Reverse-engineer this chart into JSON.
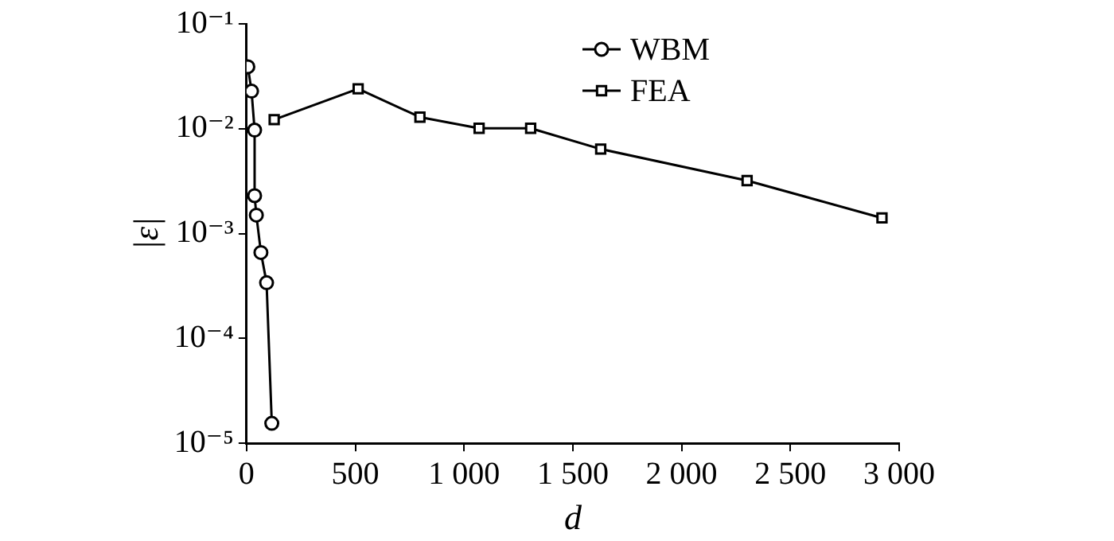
{
  "chart_data": {
    "type": "line",
    "xlabel": "d",
    "ylabel": "|ε|",
    "log": "y",
    "legend": "top right",
    "grid": false,
    "line_style": "solid",
    "xlim": [
      0,
      3000
    ],
    "xticks": [
      0,
      500,
      {
        "value": 1000,
        "label": "1 000"
      },
      {
        "value": 1500,
        "label": "1 500"
      },
      {
        "value": 2000,
        "label": "2 000"
      },
      {
        "value": 2500,
        "label": "2 500"
      },
      {
        "value": 3000,
        "label": "3 000"
      }
    ],
    "ylim": [
      1e-05,
      0.1
    ],
    "yticks": [
      {
        "value": 1e-05,
        "label": "10⁻⁵"
      },
      {
        "value": 0.0001,
        "label": "10⁻⁴"
      },
      {
        "value": 0.001,
        "label": "10⁻³"
      },
      {
        "value": 0.01,
        "label": "10⁻²"
      },
      {
        "value": 0.1,
        "label": "10⁻¹"
      }
    ],
    "series": [
      {
        "name": "WBM",
        "color": "#000000",
        "marker": "circle",
        "x": [
          6,
          23,
          37,
          37,
          45,
          66,
          92,
          116
        ],
        "values": [
          0.039,
          0.0228,
          0.0097,
          0.0023,
          0.0015,
          0.00066,
          0.00034,
          1.55e-05
        ]
      },
      {
        "name": "FEA",
        "color": "#000000",
        "marker": "square",
        "x": [
          127,
          513,
          797,
          1069,
          1306,
          1628,
          2301,
          2921
        ],
        "values": [
          0.0122,
          0.024,
          0.0129,
          0.0101,
          0.0101,
          0.0064,
          0.0032,
          0.00141
        ]
      }
    ]
  }
}
